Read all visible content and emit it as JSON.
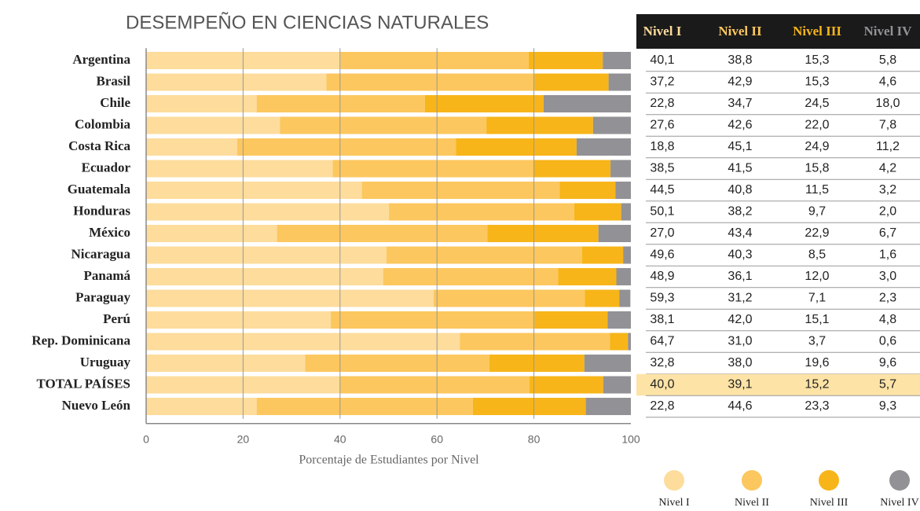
{
  "chart_data": {
    "type": "stacked-barh",
    "title": "DESEMPEÑO EN CIENCIAS NATURALES",
    "xlabel": "Porcentaje de Estudiantes por Nivel",
    "categories": [
      "Argentina",
      "Brasil",
      "Chile",
      "Colombia",
      "Costa Rica",
      "Ecuador",
      "Guatemala",
      "Honduras",
      "México",
      "Nicaragua",
      "Panamá",
      "Paraguay",
      "Perú",
      "Rep. Dominicana",
      "Uruguay",
      "TOTAL PAÍSES",
      "Nuevo León"
    ],
    "series": [
      {
        "name": "Nivel I",
        "color": "#fddc9c",
        "values": [
          40.1,
          37.2,
          22.8,
          27.6,
          18.8,
          38.5,
          44.5,
          50.1,
          27.0,
          49.6,
          48.9,
          59.3,
          38.1,
          64.7,
          32.8,
          40.0,
          22.8
        ],
        "value_labels": [
          "40,1",
          "37,2",
          "22,8",
          "27,6",
          "18,8",
          "38,5",
          "44,5",
          "50,1",
          "27,0",
          "49,6",
          "48,9",
          "59,3",
          "38,1",
          "64,7",
          "32,8",
          "40,0",
          "22,8"
        ]
      },
      {
        "name": "Nivel II",
        "color": "#fcc75e",
        "values": [
          38.8,
          42.9,
          34.7,
          42.6,
          45.1,
          41.5,
          40.8,
          38.2,
          43.4,
          40.3,
          36.1,
          31.2,
          42.0,
          31.0,
          38.0,
          39.1,
          44.6
        ],
        "value_labels": [
          "38,8",
          "42,9",
          "34,7",
          "42,6",
          "45,1",
          "41,5",
          "40,8",
          "38,2",
          "43,4",
          "40,3",
          "36,1",
          "31,2",
          "42,0",
          "31,0",
          "38,0",
          "39,1",
          "44,6"
        ]
      },
      {
        "name": "Nivel III",
        "color": "#f7b519",
        "values": [
          15.3,
          15.3,
          24.5,
          22.0,
          24.9,
          15.8,
          11.5,
          9.7,
          22.9,
          8.5,
          12.0,
          7.1,
          15.1,
          3.7,
          19.6,
          15.2,
          23.3
        ],
        "value_labels": [
          "15,3",
          "15,3",
          "24,5",
          "22,0",
          "24,9",
          "15,8",
          "11,5",
          "9,7",
          "22,9",
          "8,5",
          "12,0",
          "7,1",
          "15,1",
          "3,7",
          "19,6",
          "15,2",
          "23,3"
        ]
      },
      {
        "name": "Nivel IV",
        "color": "#929195",
        "values": [
          5.8,
          4.6,
          18.0,
          7.8,
          11.2,
          4.2,
          3.2,
          2.0,
          6.7,
          1.6,
          3.0,
          2.3,
          4.8,
          0.6,
          9.6,
          5.7,
          9.3
        ],
        "value_labels": [
          "5,8",
          "4,6",
          "18,0",
          "7,8",
          "11,2",
          "4,2",
          "3,2",
          "2,0",
          "6,7",
          "1,6",
          "3,0",
          "2,3",
          "4,8",
          "0,6",
          "9,6",
          "5,7",
          "9,3"
        ]
      }
    ],
    "xlim": [
      0,
      100
    ],
    "xticks": [
      0,
      20,
      40,
      60,
      80,
      100
    ],
    "grid": true,
    "highlight_row": 15
  }
}
